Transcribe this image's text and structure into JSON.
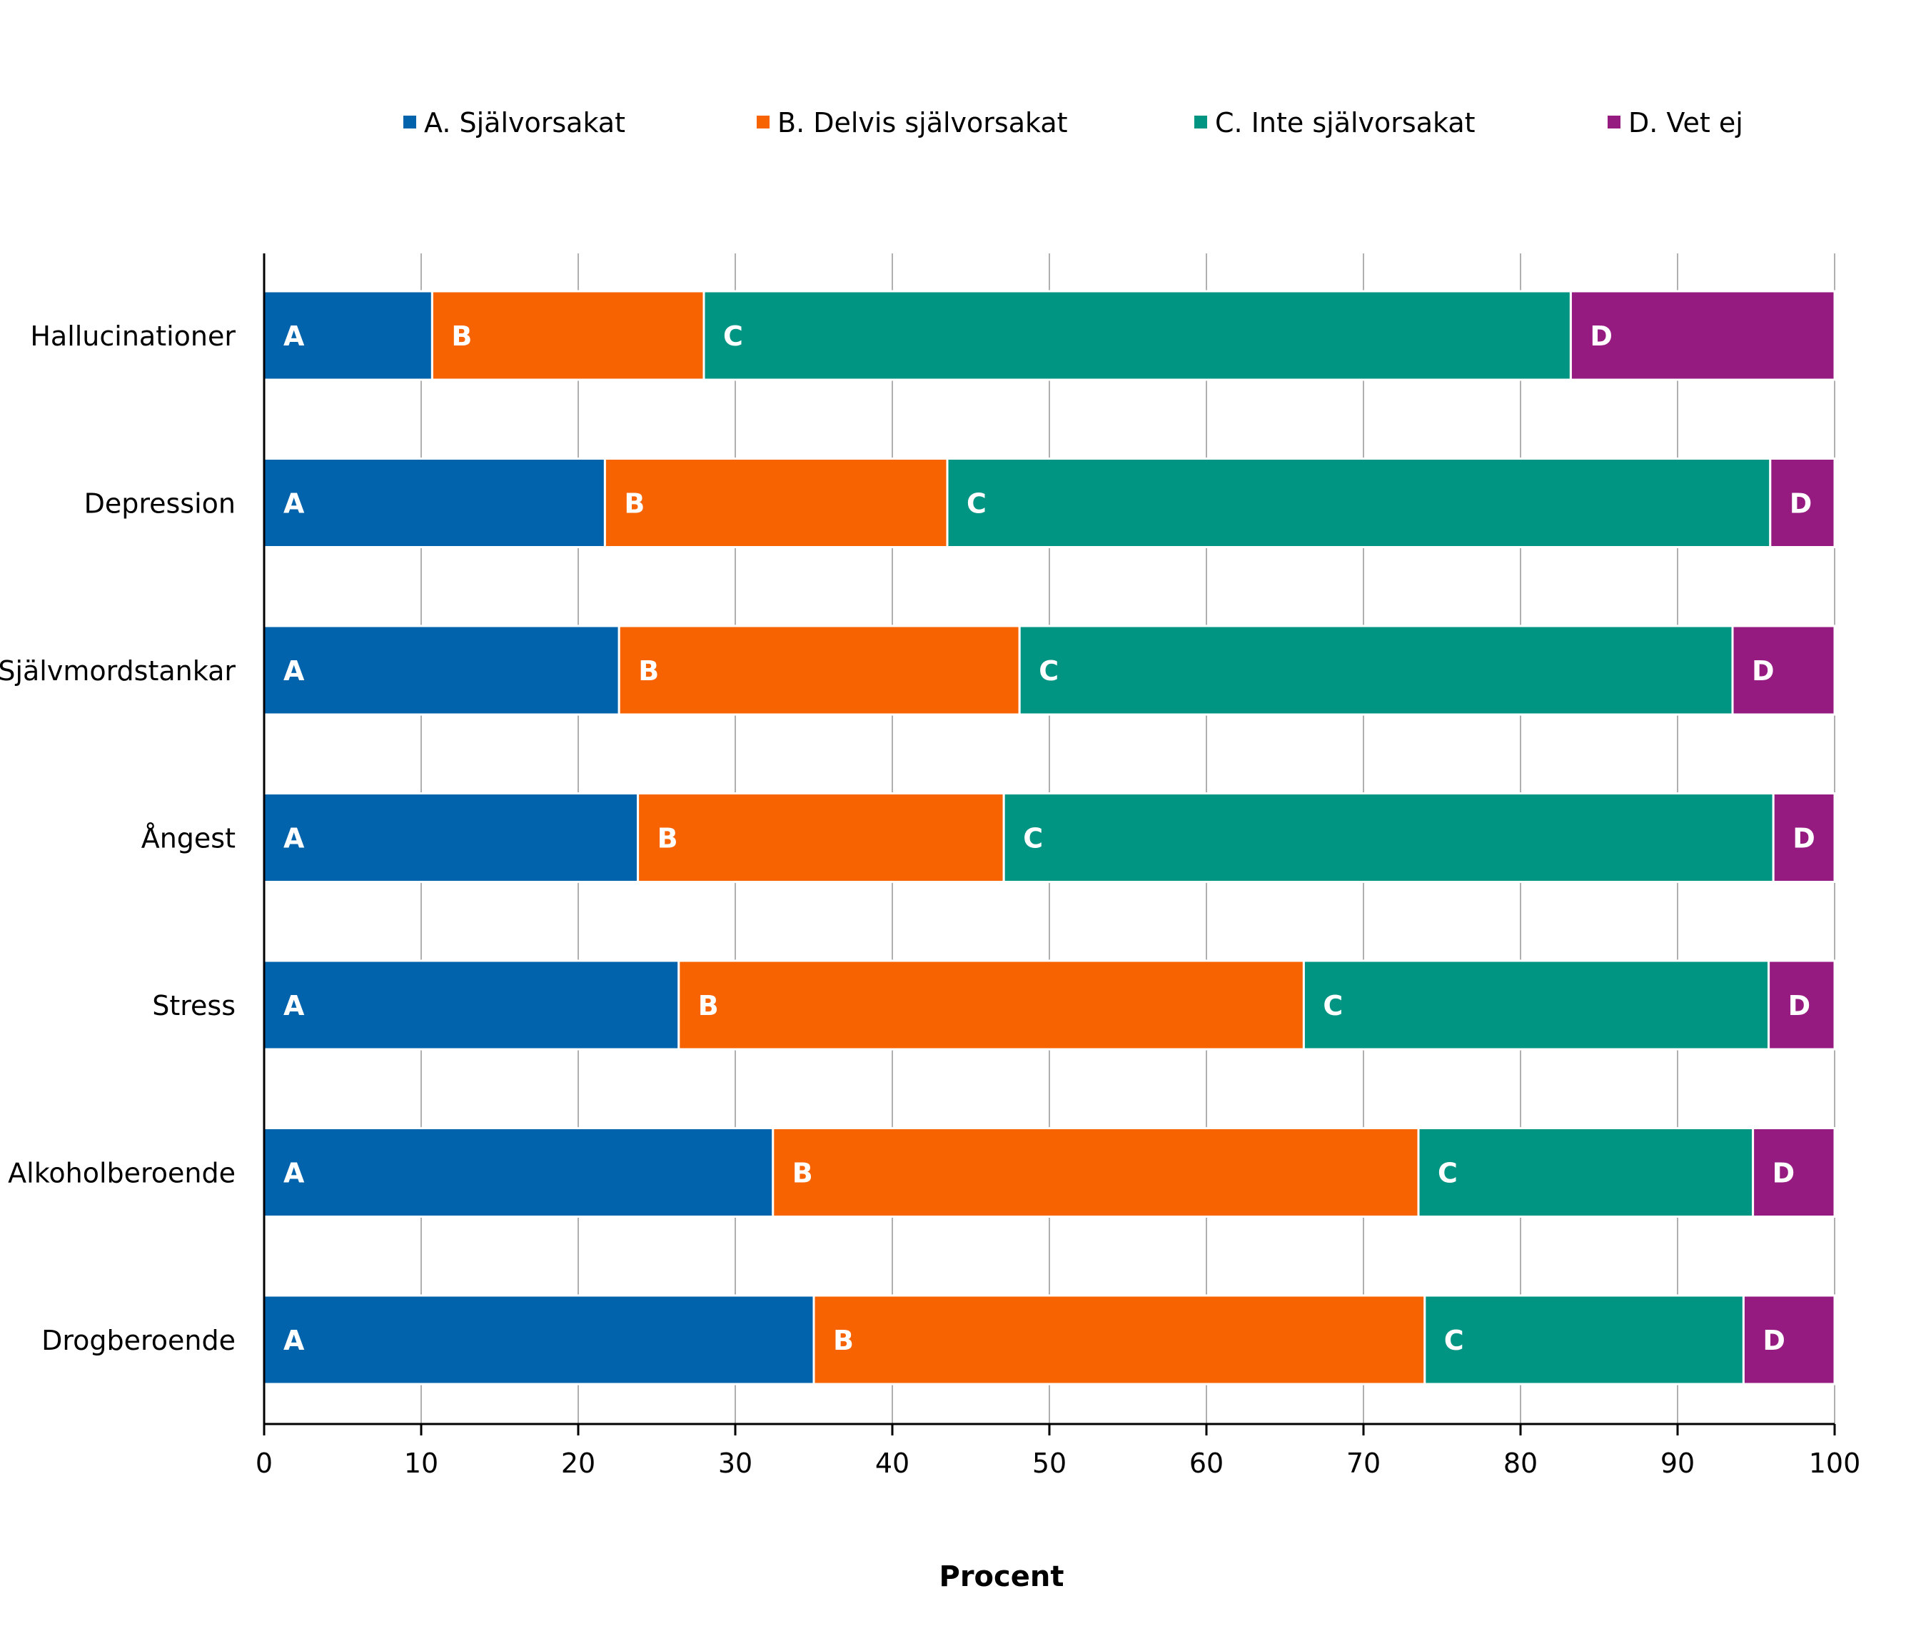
{
  "chart_data": {
    "type": "bar",
    "orientation": "horizontal",
    "stacked": true,
    "title": "",
    "xlabel": "Procent",
    "ylabel": "",
    "xlim": [
      0,
      100
    ],
    "xticks": [
      0,
      10,
      20,
      30,
      40,
      50,
      60,
      70,
      80,
      90,
      100
    ],
    "grid": true,
    "legend_position": "top",
    "categories": [
      "Hallucinationer",
      "Depression",
      "Självmordstankar",
      "Ångest",
      "Stress",
      "Alkoholberoende",
      "Drogberoende"
    ],
    "series": [
      {
        "name": "A. Självorsakat",
        "short": "A",
        "color": "#0063ab",
        "values": [
          10.7,
          21.7,
          22.6,
          23.8,
          26.4,
          32.4,
          35.0
        ]
      },
      {
        "name": "B. Delvis självorsakat",
        "short": "B",
        "color": "#f76300",
        "values": [
          17.3,
          21.8,
          25.5,
          23.3,
          39.8,
          41.1,
          38.9
        ]
      },
      {
        "name": "C. Inte självorsakat",
        "short": "C",
        "color": "#009483",
        "values": [
          55.2,
          52.4,
          45.4,
          49.0,
          29.6,
          21.3,
          20.3
        ]
      },
      {
        "name": "D. Vet ej",
        "short": "D",
        "color": "#951b81",
        "values": [
          16.8,
          4.1,
          6.5,
          3.9,
          4.2,
          5.2,
          5.8
        ]
      }
    ]
  }
}
